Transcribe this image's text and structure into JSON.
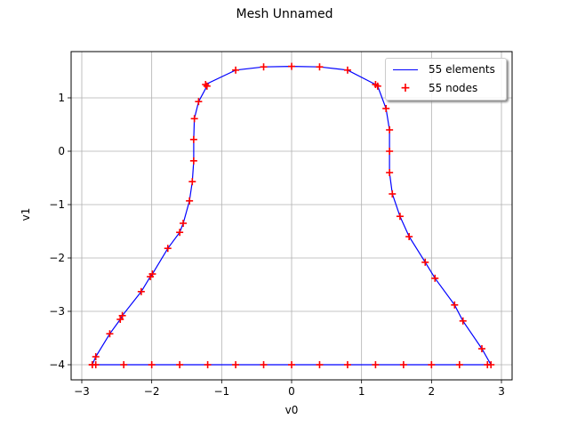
{
  "chart_data": {
    "type": "line",
    "title": "Mesh Unnamed",
    "xlabel": "v0",
    "ylabel": "v1",
    "xlim": [
      -3.15,
      3.15
    ],
    "ylim": [
      -4.28,
      1.85
    ],
    "xticks": [
      -3,
      -2,
      -1,
      0,
      1,
      2,
      3
    ],
    "yticks": [
      -4,
      -3,
      -2,
      -1,
      0,
      1
    ],
    "xtick_labels": [
      "−3",
      "−2",
      "−1",
      "0",
      "1",
      "2",
      "3"
    ],
    "ytick_labels": [
      "−4",
      "−3",
      "−2",
      "−1",
      "0",
      "1"
    ],
    "grid": true,
    "legend_position": "upper right",
    "series": [
      {
        "name": "55 elements",
        "kind": "line",
        "color": "#0000ff"
      },
      {
        "name": "55 nodes",
        "kind": "scatter",
        "marker": "+",
        "color": "#ff0000"
      }
    ],
    "nodes": [
      [
        -2.85,
        -4.0
      ],
      [
        -2.4,
        -4.0
      ],
      [
        -2.0,
        -4.0
      ],
      [
        -1.6,
        -4.0
      ],
      [
        -1.2,
        -4.0
      ],
      [
        -0.8,
        -4.0
      ],
      [
        -0.4,
        -4.0
      ],
      [
        0.0,
        -4.0
      ],
      [
        0.4,
        -4.0
      ],
      [
        0.8,
        -4.0
      ],
      [
        1.2,
        -4.0
      ],
      [
        1.6,
        -4.0
      ],
      [
        2.0,
        -4.0
      ],
      [
        2.4,
        -4.0
      ],
      [
        2.8,
        -4.0
      ],
      [
        2.85,
        -4.0
      ],
      [
        2.72,
        -3.7
      ],
      [
        2.45,
        -3.18
      ],
      [
        2.33,
        -2.88
      ],
      [
        2.05,
        -2.38
      ],
      [
        1.91,
        -2.08
      ],
      [
        1.68,
        -1.6
      ],
      [
        1.55,
        -1.22
      ],
      [
        1.44,
        -0.8
      ],
      [
        1.4,
        -0.4
      ],
      [
        1.4,
        0.0
      ],
      [
        1.4,
        0.4
      ],
      [
        1.35,
        0.8
      ],
      [
        1.23,
        1.22
      ],
      [
        1.2,
        1.25
      ],
      [
        0.8,
        1.52
      ],
      [
        0.4,
        1.58
      ],
      [
        0.0,
        1.59
      ],
      [
        -0.4,
        1.58
      ],
      [
        -0.8,
        1.52
      ],
      [
        -1.23,
        1.25
      ],
      [
        -1.21,
        1.22
      ],
      [
        -1.33,
        0.93
      ],
      [
        -1.39,
        0.61
      ],
      [
        -1.4,
        0.22
      ],
      [
        -1.4,
        -0.18
      ],
      [
        -1.42,
        -0.57
      ],
      [
        -1.46,
        -0.93
      ],
      [
        -1.55,
        -1.35
      ],
      [
        -1.6,
        -1.52
      ],
      [
        -1.77,
        -1.82
      ],
      [
        -1.99,
        -2.3
      ],
      [
        -2.02,
        -2.35
      ],
      [
        -2.15,
        -2.63
      ],
      [
        -2.42,
        -3.08
      ],
      [
        -2.45,
        -3.15
      ],
      [
        -2.6,
        -3.42
      ],
      [
        -2.8,
        -3.85
      ],
      [
        -2.85,
        -4.0
      ],
      [
        -2.8,
        -4.0
      ]
    ]
  },
  "legend": {
    "elements_label": "55 elements",
    "nodes_label": "55 nodes"
  }
}
